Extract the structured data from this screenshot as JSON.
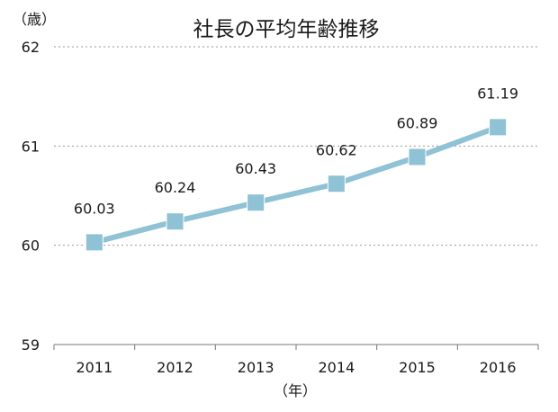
{
  "chart_data": {
    "type": "line",
    "title": "社長の平均年齢推移",
    "ylabel": "（歳）",
    "xlabel": "（年）",
    "categories": [
      "2011",
      "2012",
      "2013",
      "2014",
      "2015",
      "2016"
    ],
    "values": [
      60.03,
      60.24,
      60.43,
      60.62,
      60.89,
      61.19
    ],
    "data_labels": [
      "60.03",
      "60.24",
      "60.43",
      "60.62",
      "60.89",
      "61.19"
    ],
    "yticks": [
      "59",
      "60",
      "61",
      "62"
    ],
    "ylim": [
      59,
      62
    ],
    "grid": true,
    "legend": "none",
    "colors": {
      "line": "#8ec2d4",
      "marker": "#8ec2d4",
      "grid": "#9a9a9a"
    }
  }
}
